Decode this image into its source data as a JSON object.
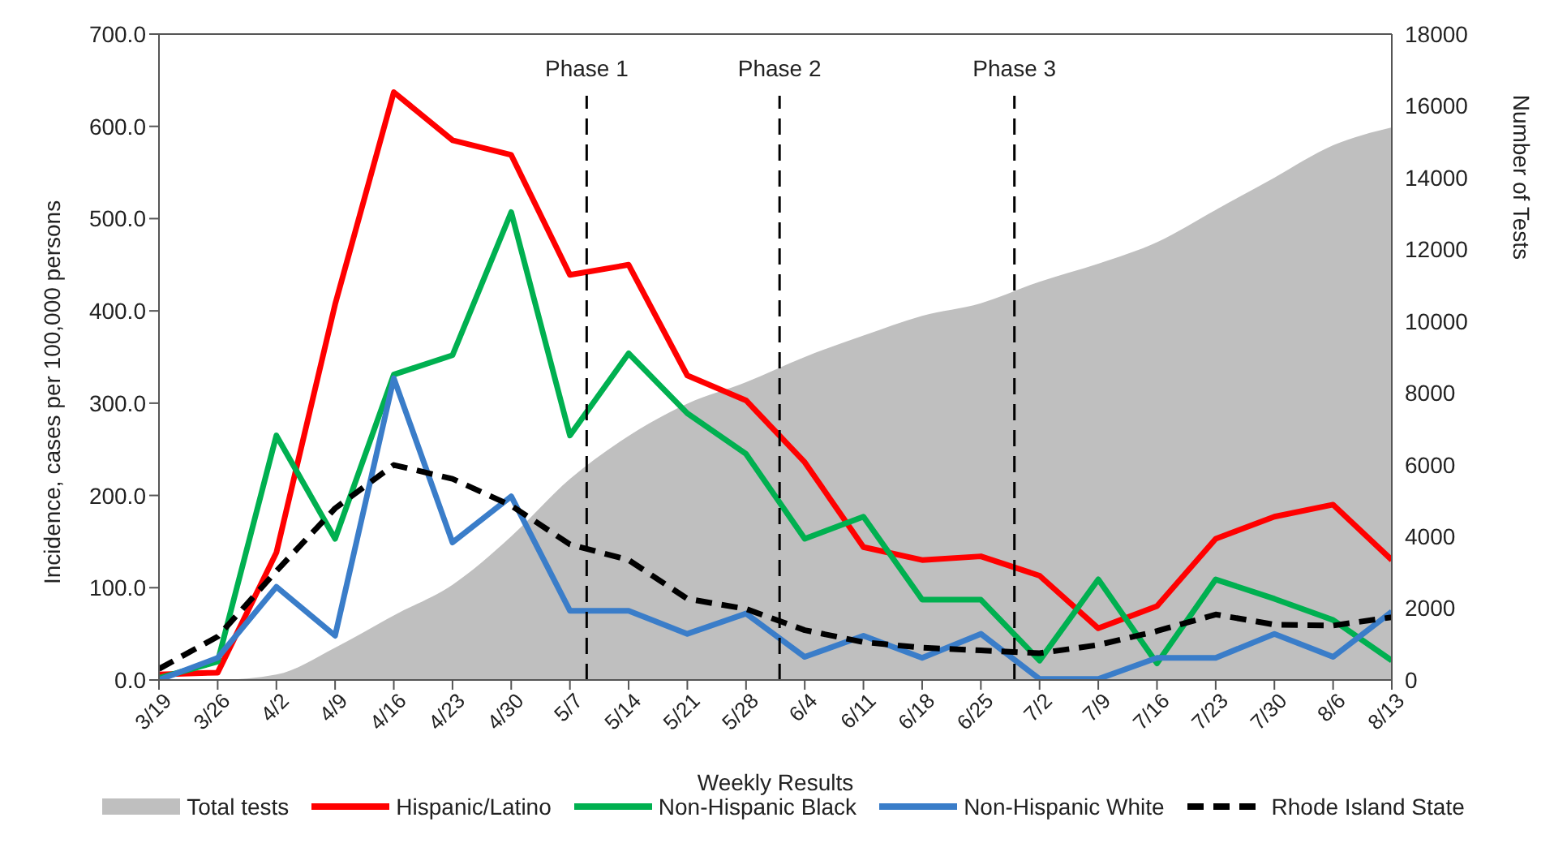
{
  "chart_data": {
    "type": "line",
    "xlabel": "Weekly Results",
    "ylabel": "Incidence, cases per 100,000 persons",
    "y2label": "Number of Tests",
    "x": [
      "--03-19",
      "--03-26",
      "--04-02",
      "--04-09",
      "--04-16",
      "--04-23",
      "--04-30",
      "--05-07",
      "--05-14",
      "--05-21",
      "--05-28",
      "--06-04",
      "--06-11",
      "--06-18",
      "--06-25",
      "--07-02",
      "--07-09",
      "--07-16",
      "--07-23",
      "--07-30",
      "--08-06",
      "--08-13"
    ],
    "xlim": [
      "--03-19",
      "--08-13"
    ],
    "xticks": [
      {
        "value": "--03-19",
        "label": "3/19"
      },
      {
        "value": "--03-26",
        "label": "3/26"
      },
      {
        "value": "--04-02",
        "label": "4/2"
      },
      {
        "value": "--04-09",
        "label": "4/9"
      },
      {
        "value": "--04-16",
        "label": "4/16"
      },
      {
        "value": "--04-23",
        "label": "4/23"
      },
      {
        "value": "--04-30",
        "label": "4/30"
      },
      {
        "value": "--05-07",
        "label": "5/7"
      },
      {
        "value": "--05-14",
        "label": "5/14"
      },
      {
        "value": "--05-21",
        "label": "5/21"
      },
      {
        "value": "--05-28",
        "label": "5/28"
      },
      {
        "value": "--06-04",
        "label": "6/4"
      },
      {
        "value": "--06-11",
        "label": "6/11"
      },
      {
        "value": "--06-18",
        "label": "6/18"
      },
      {
        "value": "--06-25",
        "label": "6/25"
      },
      {
        "value": "--07-02",
        "label": "7/2"
      },
      {
        "value": "--07-09",
        "label": "7/9"
      },
      {
        "value": "--07-16",
        "label": "7/16"
      },
      {
        "value": "--07-23",
        "label": "7/23"
      },
      {
        "value": "--07-30",
        "label": "7/30"
      },
      {
        "value": "--08-06",
        "label": "8/6"
      },
      {
        "value": "--08-13",
        "label": "8/13"
      }
    ],
    "ylim": [
      0,
      700
    ],
    "yticks": [
      {
        "value": 0,
        "label": "0.0"
      },
      {
        "value": 100,
        "label": "100.0"
      },
      {
        "value": 200,
        "label": "200.0"
      },
      {
        "value": 300,
        "label": "300.0"
      },
      {
        "value": 400,
        "label": "400.0"
      },
      {
        "value": 500,
        "label": "500.0"
      },
      {
        "value": 600,
        "label": "600.0"
      },
      {
        "value": 700,
        "label": "700.0"
      }
    ],
    "y2lim": [
      0,
      18000
    ],
    "y2ticks": [
      0,
      2000,
      4000,
      6000,
      8000,
      10000,
      12000,
      14000,
      16000,
      18000
    ],
    "series": [
      {
        "name": "Total tests",
        "type": "area",
        "axis": "y2",
        "color": "#bfbfbf",
        "values": [
          0,
          0,
          150,
          900,
          1800,
          2650,
          4000,
          5600,
          6800,
          7700,
          8300,
          9000,
          9600,
          10150,
          10500,
          11100,
          11600,
          12200,
          13100,
          14000,
          14900,
          15400
        ]
      },
      {
        "name": "Hispanic/Latino",
        "color": "#ff0000",
        "values": [
          6,
          8,
          138,
          407,
          637,
          585,
          569,
          439,
          450,
          330,
          303,
          236,
          144,
          130,
          134,
          113,
          56,
          80,
          153,
          177,
          190,
          130
        ]
      },
      {
        "name": "Non-Hispanic Black",
        "color": "#00b050",
        "values": [
          2,
          20,
          265,
          153,
          331,
          352,
          507,
          265,
          354,
          289,
          245,
          153,
          177,
          87,
          87,
          21,
          109,
          18,
          109,
          88,
          65,
          21
        ]
      },
      {
        "name": "Non-Hispanic White",
        "color": "#3a7dc9",
        "values": [
          0,
          24,
          101,
          48,
          327,
          149,
          199,
          75,
          75,
          50,
          72,
          25,
          48,
          24,
          50,
          1,
          1,
          24,
          24,
          50,
          25,
          74
        ]
      },
      {
        "name": "Rhode Island State",
        "color": "#000000",
        "line_style": "dashed",
        "values": [
          12,
          47,
          118,
          186,
          233,
          218,
          189,
          147,
          130,
          88,
          77,
          54,
          41,
          35,
          32,
          29,
          38,
          53,
          71,
          60,
          59,
          68
        ]
      }
    ],
    "ref_lines": [
      {
        "axis": "x",
        "value": "--05-09",
        "label": "Phase 1",
        "color": "#000000",
        "line_style": "dashed"
      },
      {
        "axis": "x",
        "value": "--06-01",
        "label": "Phase 2",
        "color": "#000000",
        "line_style": "dashed"
      },
      {
        "axis": "x",
        "value": "--06-29",
        "label": "Phase 3",
        "color": "#000000",
        "line_style": "dashed"
      }
    ],
    "grid": false,
    "legend": "bottom",
    "marker": "none",
    "line_style": "solid"
  }
}
